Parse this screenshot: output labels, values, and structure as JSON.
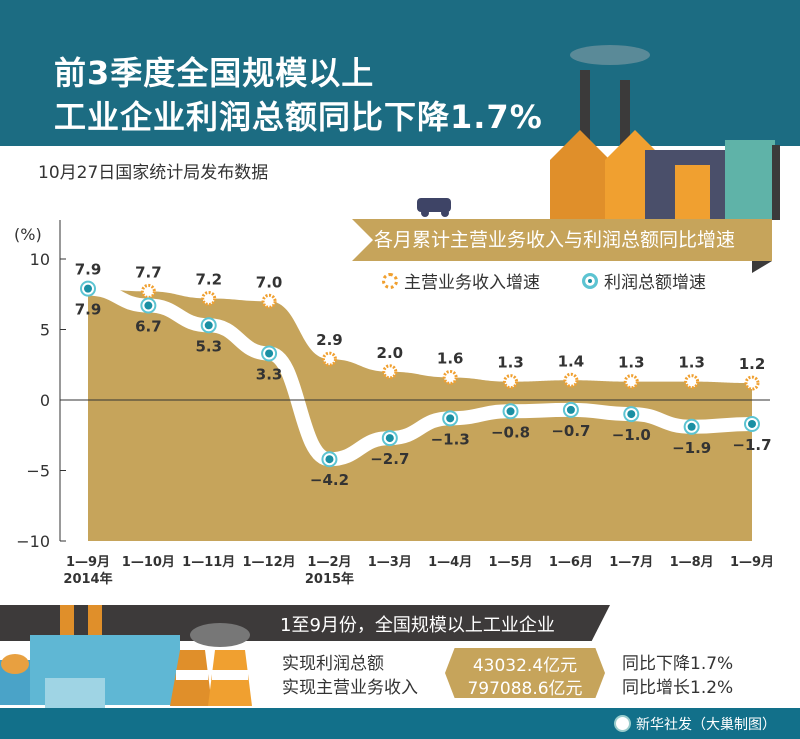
{
  "header": {
    "title_line1": "前3季度全国规模以上",
    "title_line2": "工业企业利润总额同比下降1.7%",
    "subtitle": "10月27日国家统计局发布数据"
  },
  "chart_data": {
    "type": "area",
    "title": "各月累计主营业务收入与利润总额同比增速",
    "ylabel": "(%)",
    "ylim": [
      -10,
      10
    ],
    "yticks": [
      10,
      5,
      0,
      -5,
      -10
    ],
    "categories": [
      "1—9月",
      "1—10月",
      "1—11月",
      "1—12月",
      "1—2月",
      "1—3月",
      "1—4月",
      "1—5月",
      "1—6月",
      "1—7月",
      "1—8月",
      "1—9月"
    ],
    "year_labels": [
      {
        "index": 0,
        "label": "2014年"
      },
      {
        "index": 4,
        "label": "2015年"
      }
    ],
    "series": [
      {
        "name": "主营业务收入增速",
        "values": [
          7.9,
          7.7,
          7.2,
          7.0,
          2.9,
          2.0,
          1.6,
          1.3,
          1.4,
          1.3,
          1.3,
          1.2
        ],
        "labels": [
          "7.9",
          "7.7",
          "7.2",
          "7.0",
          "2.9",
          "2.0",
          "1.6",
          "1.3",
          "1.4",
          "1.3",
          "1.3",
          "1.2"
        ],
        "color": "#f0a030"
      },
      {
        "name": "利润总额增速",
        "values": [
          7.9,
          6.7,
          5.3,
          3.3,
          -4.2,
          -2.7,
          -1.3,
          -0.8,
          -0.7,
          -1.0,
          -1.9,
          -1.7
        ],
        "labels": [
          "7.9",
          "6.7",
          "5.3",
          "3.3",
          "−4.2",
          "−2.7",
          "−1.3",
          "−0.8",
          "−0.7",
          "−1.0",
          "−1.9",
          "−1.7"
        ],
        "color": "#1a8fa3"
      }
    ],
    "legend": "top-right"
  },
  "summary": {
    "heading": "1至9月份，全国规模以上工业企业",
    "rows": [
      {
        "label": "实现利润总额",
        "value": "43032.4亿元",
        "change": "同比下降1.7%"
      },
      {
        "label": "实现主营业务收入",
        "value": "797088.6亿元",
        "change": "同比增长1.2%"
      }
    ]
  },
  "footer": {
    "credit": "新华社发（大巢制图）"
  },
  "colors": {
    "header": "#1c6c82",
    "area": "#c6a45b",
    "revenue": "#f0a030",
    "profit": "#1a8fa3"
  }
}
